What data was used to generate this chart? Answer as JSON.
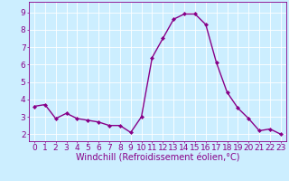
{
  "x": [
    0,
    1,
    2,
    3,
    4,
    5,
    6,
    7,
    8,
    9,
    10,
    11,
    12,
    13,
    14,
    15,
    16,
    17,
    18,
    19,
    20,
    21,
    22,
    23
  ],
  "y": [
    3.6,
    3.7,
    2.9,
    3.2,
    2.9,
    2.8,
    2.7,
    2.5,
    2.5,
    2.1,
    3.0,
    6.4,
    7.5,
    8.6,
    8.9,
    8.9,
    8.3,
    6.1,
    4.4,
    3.5,
    2.9,
    2.2,
    2.3,
    2.0
  ],
  "line_color": "#880088",
  "marker": "D",
  "marker_size": 2.0,
  "bg_color": "#cceeff",
  "grid_color": "#ffffff",
  "xlabel": "Windchill (Refroidissement éolien,°C)",
  "xlabel_color": "#880088",
  "xlabel_fontsize": 7,
  "xtick_labels": [
    "0",
    "1",
    "2",
    "3",
    "4",
    "5",
    "6",
    "7",
    "8",
    "9",
    "10",
    "11",
    "12",
    "13",
    "14",
    "15",
    "16",
    "17",
    "18",
    "19",
    "20",
    "21",
    "22",
    "23"
  ],
  "ytick_labels": [
    "2",
    "3",
    "4",
    "5",
    "6",
    "7",
    "8",
    "9"
  ],
  "yticks": [
    2,
    3,
    4,
    5,
    6,
    7,
    8,
    9
  ],
  "ylim": [
    1.6,
    9.6
  ],
  "xlim": [
    -0.5,
    23.5
  ],
  "tick_color": "#880088",
  "tick_fontsize": 6.5,
  "spine_color": "#880088",
  "linewidth": 1.0,
  "grid_linewidth": 0.6
}
